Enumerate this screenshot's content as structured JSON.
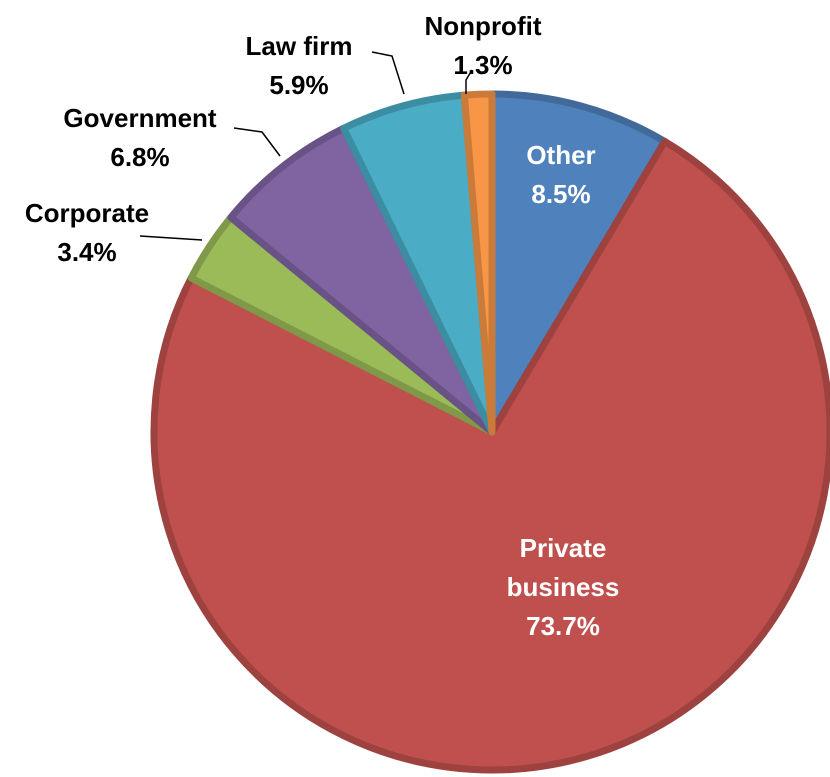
{
  "chart_data": {
    "type": "pie",
    "title": "",
    "legend": "none",
    "start": "12 o'clock, clockwise",
    "slices": [
      {
        "name": "Other",
        "value": 8.5,
        "label": "8.5%",
        "color": "#4F81BD"
      },
      {
        "name": "Private business",
        "value": 73.7,
        "label": "73.7%",
        "color": "#C0504D"
      },
      {
        "name": "Corporate",
        "value": 3.4,
        "label": "3.4%",
        "color": "#9BBB59"
      },
      {
        "name": "Government",
        "value": 6.8,
        "label": "6.8%",
        "color": "#8064A2"
      },
      {
        "name": "Law firm",
        "value": 5.9,
        "label": "5.9%",
        "color": "#4BACC6"
      },
      {
        "name": "Nonprofit",
        "value": 1.3,
        "label": "1.3%",
        "color": "#F79646"
      }
    ]
  },
  "labels": {
    "other": {
      "name": "Other",
      "pct": "8.5%"
    },
    "private_business": {
      "line1": "Private",
      "line2": "business",
      "pct": "73.7%"
    },
    "corporate": {
      "name": "Corporate",
      "pct": "3.4%"
    },
    "government": {
      "name": "Government",
      "pct": "6.8%"
    },
    "law_firm": {
      "name": "Law firm",
      "pct": "5.9%"
    },
    "nonprofit": {
      "name": "Nonprofit",
      "pct": "1.3%"
    }
  }
}
